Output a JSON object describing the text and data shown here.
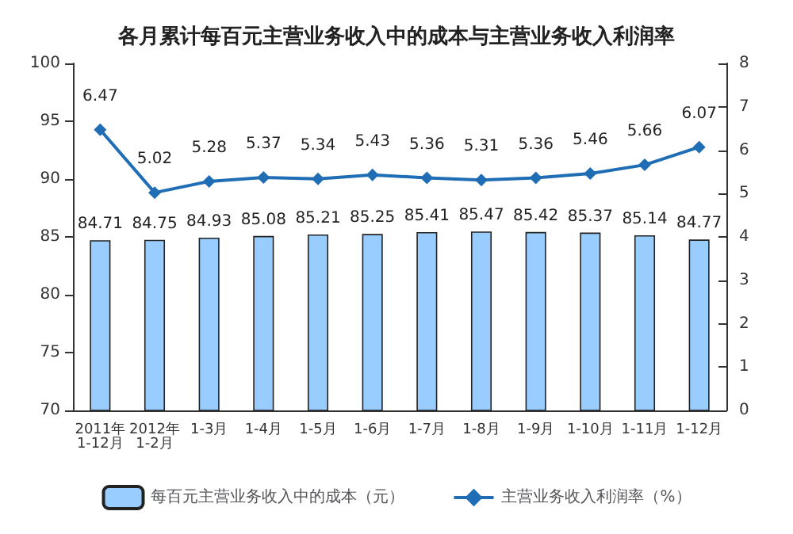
{
  "chart_data": {
    "type": "bar",
    "title": "各月累计每百元主营业务收入中的成本与主营业务收入利润率",
    "categories": [
      "2011年\n1-12月",
      "2012年\n1-2月",
      "1-3月",
      "1-4月",
      "1-5月",
      "1-6月",
      "1-7月",
      "1-8月",
      "1-9月",
      "1-10月",
      "1-11月",
      "1-12月"
    ],
    "series": [
      {
        "name": "每百元主营业务收入中的成本（元）",
        "color": "#99ccff",
        "values": [
          84.71,
          84.75,
          84.93,
          85.08,
          85.21,
          85.25,
          85.41,
          85.47,
          85.42,
          85.37,
          85.14,
          84.77
        ]
      },
      {
        "name": "主营业务收入利润率（%）",
        "type": "line",
        "axis": "y2",
        "color": "#1f6db5",
        "marker": "diamond",
        "values": [
          6.47,
          5.02,
          5.28,
          5.37,
          5.34,
          5.43,
          5.36,
          5.31,
          5.36,
          5.46,
          5.66,
          6.07
        ]
      }
    ],
    "ylim": [
      70,
      100
    ],
    "yticks": [
      70,
      75,
      80,
      85,
      90,
      95,
      100
    ],
    "y2lim": [
      0,
      8
    ],
    "y2ticks": [
      0,
      1,
      2,
      3,
      4,
      5,
      6,
      7,
      8
    ],
    "data_labels": true,
    "legend": "bottom",
    "line_style": "solid"
  }
}
